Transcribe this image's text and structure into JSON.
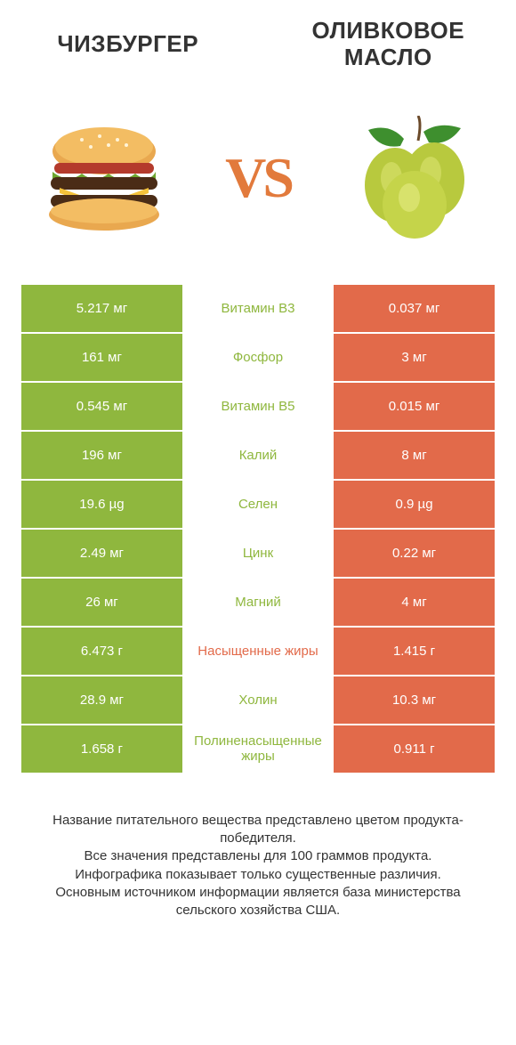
{
  "title_left": "ЧИЗБУРГЕР",
  "title_right_line1": "ОЛИВКОВОЕ",
  "title_right_line2": "МАСЛО",
  "vs_label": "VS",
  "colors": {
    "left_fill": "#8fb73e",
    "right_fill": "#e26a4a",
    "mid_green": "#8fb73e",
    "mid_orange": "#e26a4a",
    "text_white": "#ffffff"
  },
  "rows": [
    {
      "left": "5.217 мг",
      "mid": "Витамин B3",
      "mid_color": "#8fb73e",
      "right": "0.037 мг"
    },
    {
      "left": "161 мг",
      "mid": "Фосфор",
      "mid_color": "#8fb73e",
      "right": "3 мг"
    },
    {
      "left": "0.545 мг",
      "mid": "Витамин B5",
      "mid_color": "#8fb73e",
      "right": "0.015 мг"
    },
    {
      "left": "196 мг",
      "mid": "Калий",
      "mid_color": "#8fb73e",
      "right": "8 мг"
    },
    {
      "left": "19.6 µg",
      "mid": "Селен",
      "mid_color": "#8fb73e",
      "right": "0.9 µg"
    },
    {
      "left": "2.49 мг",
      "mid": "Цинк",
      "mid_color": "#8fb73e",
      "right": "0.22 мг"
    },
    {
      "left": "26 мг",
      "mid": "Магний",
      "mid_color": "#8fb73e",
      "right": "4 мг"
    },
    {
      "left": "6.473 г",
      "mid": "Насыщенные жиры",
      "mid_color": "#e26a4a",
      "right": "1.415 г"
    },
    {
      "left": "28.9 мг",
      "mid": "Холин",
      "mid_color": "#8fb73e",
      "right": "10.3 мг"
    },
    {
      "left": "1.658 г",
      "mid": "Полиненасыщенные жиры",
      "mid_color": "#8fb73e",
      "right": "0.911 г"
    }
  ],
  "footer_lines": [
    "Название питательного вещества представлено цветом продукта-победителя.",
    "Все значения представлены для 100 граммов продукта.",
    "Инфографика показывает только существенные различия.",
    "Основным источником информации является база министерства сельского хозяйства США."
  ]
}
